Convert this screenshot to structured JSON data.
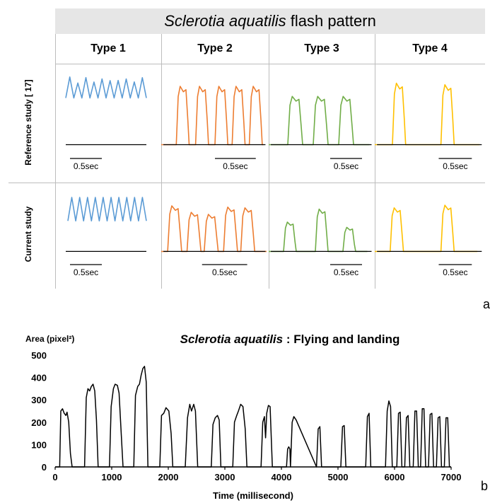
{
  "panel_a": {
    "title_species": "Sclerotia aquatilis",
    "title_rest": " flash pattern",
    "columns": [
      "Type 1",
      "Type 2",
      "Type 3",
      "Type 4"
    ],
    "rows": [
      "Reference study [ 17]",
      "Current study"
    ],
    "scale_label": "0.5sec",
    "colors": [
      "#5b9bd5",
      "#ed7d31",
      "#70ad47",
      "#ffc000"
    ],
    "letter": "a"
  },
  "chart_data": {
    "type": "line",
    "title_species": "Sclerotia aquatilis",
    "title_rest": " : Flying and landing",
    "ylabel": "Area (pixel²)",
    "xlabel": "Time (millisecond)",
    "xlim": [
      0,
      7000
    ],
    "ylim": [
      0,
      500
    ],
    "xticks": [
      0,
      1000,
      2000,
      3000,
      4000,
      5000,
      6000,
      7000
    ],
    "yticks": [
      0,
      100,
      200,
      300,
      400,
      500
    ],
    "grid": false,
    "series": [
      {
        "color": "#000000",
        "x": [
          0,
          80,
          100,
          130,
          160,
          190,
          210,
          240,
          270,
          300,
          520,
          550,
          580,
          610,
          640,
          670,
          700,
          730,
          760,
          960,
          990,
          1030,
          1060,
          1100,
          1130,
          1170,
          1200,
          1390,
          1420,
          1460,
          1490,
          1520,
          1550,
          1580,
          1610,
          1640,
          1850,
          1880,
          1920,
          1960,
          2010,
          2050,
          2080,
          2300,
          2340,
          2380,
          2410,
          2450,
          2480,
          2520,
          2760,
          2790,
          2830,
          2870,
          2900,
          2930,
          3140,
          3170,
          3210,
          3240,
          3280,
          3320,
          3360,
          3390,
          3640,
          3670,
          3700,
          3720,
          3740,
          3770,
          3800,
          3840,
          4090,
          4110,
          4130,
          4150,
          4160,
          4190,
          4220,
          4260,
          4620,
          4650,
          4680,
          4710,
          5050,
          5080,
          5110,
          5140,
          5490,
          5520,
          5550,
          5580,
          5840,
          5870,
          5900,
          5930,
          5960,
          6040,
          6070,
          6100,
          6130,
          6180,
          6210,
          6240,
          6270,
          6330,
          6360,
          6390,
          6420,
          6460,
          6490,
          6520,
          6550,
          6600,
          6630,
          6660,
          6690,
          6740,
          6770,
          6800,
          6830,
          6880,
          6910,
          6940,
          6970,
          7000
        ],
        "y": [
          0,
          0,
          250,
          260,
          240,
          230,
          245,
          200,
          60,
          0,
          0,
          310,
          350,
          340,
          360,
          370,
          340,
          210,
          0,
          0,
          270,
          350,
          370,
          365,
          330,
          140,
          0,
          0,
          320,
          360,
          370,
          410,
          440,
          450,
          380,
          0,
          0,
          230,
          240,
          265,
          250,
          150,
          0,
          0,
          220,
          280,
          250,
          280,
          250,
          0,
          0,
          190,
          220,
          230,
          210,
          0,
          0,
          200,
          230,
          250,
          280,
          270,
          170,
          0,
          0,
          200,
          225,
          130,
          240,
          275,
          270,
          0,
          0,
          80,
          90,
          80,
          0,
          200,
          225,
          210,
          0,
          170,
          180,
          0,
          0,
          180,
          185,
          0,
          0,
          225,
          240,
          0,
          0,
          250,
          295,
          270,
          0,
          0,
          240,
          245,
          0,
          0,
          220,
          230,
          0,
          0,
          250,
          250,
          0,
          0,
          260,
          260,
          0,
          0,
          235,
          240,
          0,
          0,
          220,
          225,
          0,
          0,
          220,
          220,
          0,
          0
        ]
      }
    ]
  },
  "panel_b_letter": "b"
}
